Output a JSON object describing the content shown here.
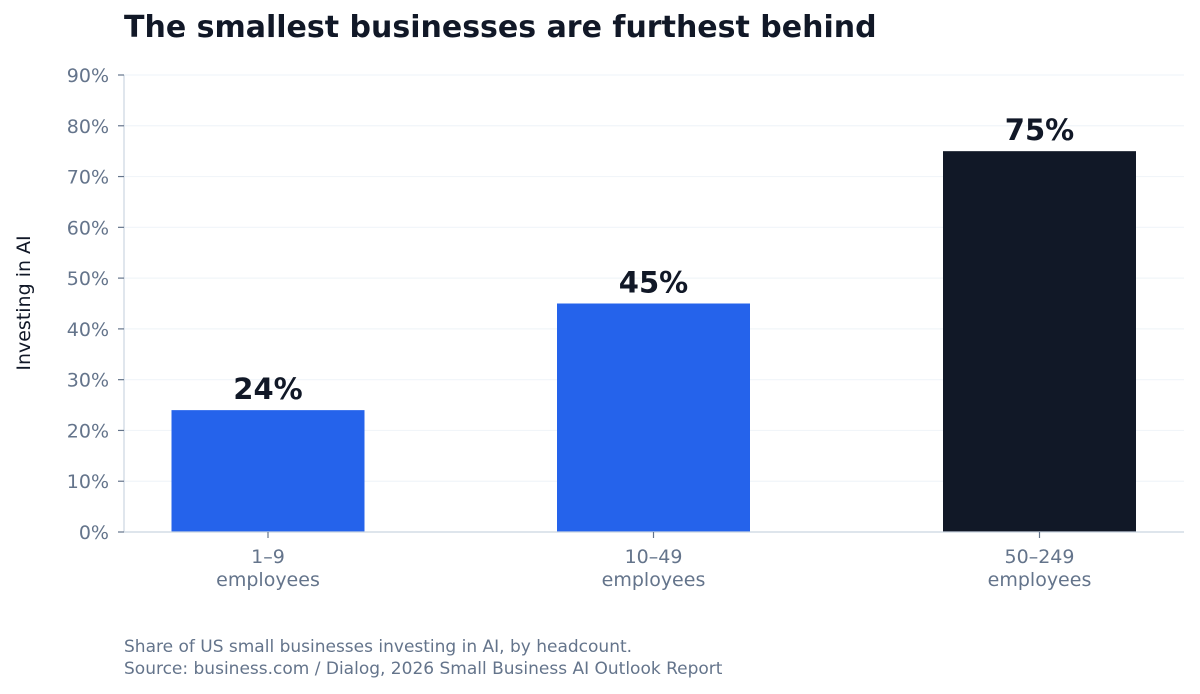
{
  "chart_data": {
    "type": "bar",
    "title": "The smallest businesses are furthest behind",
    "ylabel": "Investing in AI",
    "xlabel": "",
    "categories": [
      [
        "1–9",
        "employees"
      ],
      [
        "10–49",
        "employees"
      ],
      [
        "50–249",
        "employees"
      ]
    ],
    "values": [
      24,
      45,
      75
    ],
    "value_labels": [
      "24%",
      "45%",
      "75%"
    ],
    "bar_colors": [
      "#2563eb",
      "#2563eb",
      "#111827"
    ],
    "ylim": [
      0,
      90
    ],
    "yticks": [
      0,
      10,
      20,
      30,
      40,
      50,
      60,
      70,
      80,
      90
    ],
    "ytick_labels": [
      "0%",
      "10%",
      "20%",
      "30%",
      "40%",
      "50%",
      "60%",
      "70%",
      "80%",
      "90%"
    ],
    "grid": true,
    "legend": "none"
  },
  "footnote": {
    "line1": "Share of US small businesses investing in AI, by headcount.",
    "line2": "Source: business.com / Dialog, 2026 Small Business AI Outlook Report"
  },
  "colors": {
    "title": "#111827",
    "tick": "#64748b",
    "grid": "#f1f5f9",
    "axis": "#cbd5e1",
    "accent": "#2563eb",
    "highlight": "#111827"
  }
}
